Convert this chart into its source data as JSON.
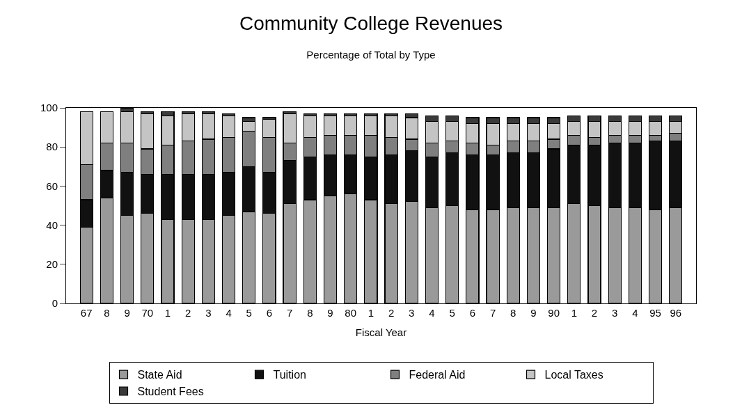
{
  "chart_data": {
    "type": "bar",
    "title": "Community College Revenues",
    "subtitle": "Percentage of Total by Type",
    "xlabel": "Fiscal Year",
    "stacked": true,
    "legend": "bottom",
    "categories": [
      "67",
      "8",
      "9",
      "70",
      "1",
      "2",
      "3",
      "4",
      "5",
      "6",
      "7",
      "8",
      "9",
      "80",
      "1",
      "2",
      "3",
      "4",
      "5",
      "6",
      "7",
      "8",
      "9",
      "90",
      "1",
      "2",
      "3",
      "4",
      "95",
      "96"
    ],
    "ylim": [
      0,
      100
    ],
    "yticks": [
      0,
      20,
      40,
      60,
      80,
      100
    ],
    "series": [
      {
        "name": "State Aid",
        "color": "#9a9a9a",
        "values": [
          39,
          54,
          45,
          46,
          43,
          43,
          43,
          45,
          47,
          46,
          51,
          53,
          55,
          56,
          53,
          51,
          52,
          49,
          50,
          48,
          48,
          49,
          49,
          49,
          51,
          50,
          49,
          49,
          48,
          49
        ]
      },
      {
        "name": "Tuition",
        "color": "#111111",
        "values": [
          14,
          14,
          22,
          20,
          23,
          23,
          23,
          22,
          23,
          21,
          22,
          22,
          21,
          20,
          22,
          25,
          26,
          26,
          27,
          28,
          28,
          28,
          28,
          30,
          30,
          31,
          33,
          33,
          35,
          34
        ]
      },
      {
        "name": "Federal Aid",
        "color": "#7f7f7f",
        "values": [
          18,
          14,
          15,
          13,
          15,
          17,
          18,
          18,
          18,
          18,
          9,
          10,
          10,
          10,
          11,
          9,
          6,
          7,
          6,
          6,
          5,
          6,
          6,
          5,
          5,
          4,
          4,
          4,
          3,
          4
        ]
      },
      {
        "name": "Local Taxes",
        "color": "#c4c4c4",
        "values": [
          27,
          16,
          16,
          18,
          15,
          14,
          13,
          11,
          5,
          9,
          15,
          11,
          10,
          10,
          10,
          11,
          11,
          11,
          10,
          10,
          11,
          9,
          9,
          8,
          7,
          8,
          7,
          7,
          7,
          6
        ]
      },
      {
        "name": "Student Fees",
        "color": "#3a3a3a",
        "values": [
          null,
          null,
          2,
          1,
          2,
          1,
          1,
          1,
          2,
          1,
          1,
          1,
          1,
          1,
          1,
          1,
          2,
          3,
          3,
          3,
          3,
          3,
          3,
          3,
          3,
          3,
          3,
          3,
          3,
          3
        ]
      }
    ]
  }
}
